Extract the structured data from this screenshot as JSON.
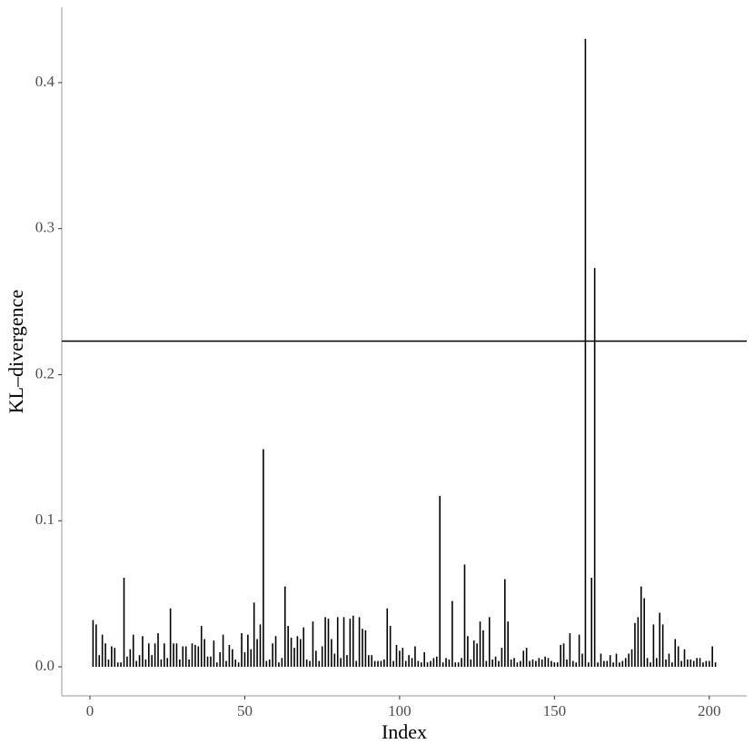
{
  "chart_data": {
    "type": "spike",
    "xlabel": "Index",
    "ylabel": "KL–divergence",
    "x": [
      1,
      2,
      3,
      4,
      5,
      6,
      7,
      8,
      9,
      10,
      11,
      12,
      13,
      14,
      15,
      16,
      17,
      18,
      19,
      20,
      21,
      22,
      23,
      24,
      25,
      26,
      27,
      28,
      29,
      30,
      31,
      32,
      33,
      34,
      35,
      36,
      37,
      38,
      39,
      40,
      41,
      42,
      43,
      44,
      45,
      46,
      47,
      48,
      49,
      50,
      51,
      52,
      53,
      54,
      55,
      56,
      57,
      58,
      59,
      60,
      61,
      62,
      63,
      64,
      65,
      66,
      67,
      68,
      69,
      70,
      71,
      72,
      73,
      74,
      75,
      76,
      77,
      78,
      79,
      80,
      81,
      82,
      83,
      84,
      85,
      86,
      87,
      88,
      89,
      90,
      91,
      92,
      93,
      94,
      95,
      96,
      97,
      98,
      99,
      100,
      101,
      102,
      103,
      104,
      105,
      106,
      107,
      108,
      109,
      110,
      111,
      112,
      113,
      114,
      115,
      116,
      117,
      118,
      119,
      120,
      121,
      122,
      123,
      124,
      125,
      126,
      127,
      128,
      129,
      130,
      131,
      132,
      133,
      134,
      135,
      136,
      137,
      138,
      139,
      140,
      141,
      142,
      143,
      144,
      145,
      146,
      147,
      148,
      149,
      150,
      151,
      152,
      153,
      154,
      155,
      156,
      157,
      158,
      159,
      160,
      161,
      162,
      163,
      164,
      165,
      166,
      167,
      168,
      169,
      170,
      171,
      172,
      173,
      174,
      175,
      176,
      177,
      178,
      179,
      180,
      181,
      182,
      183,
      184,
      185,
      186,
      187,
      188,
      189,
      190,
      191,
      192,
      193,
      194,
      195,
      196,
      197,
      198,
      199,
      200,
      201,
      202
    ],
    "values": [
      0.032,
      0.029,
      0.008,
      0.022,
      0.016,
      0.005,
      0.014,
      0.013,
      0.003,
      0.003,
      0.061,
      0.007,
      0.012,
      0.022,
      0.004,
      0.008,
      0.021,
      0.005,
      0.016,
      0.008,
      0.016,
      0.023,
      0.005,
      0.016,
      0.006,
      0.04,
      0.016,
      0.016,
      0.005,
      0.014,
      0.014,
      0.005,
      0.016,
      0.015,
      0.014,
      0.028,
      0.019,
      0.007,
      0.007,
      0.018,
      0.003,
      0.01,
      0.022,
      0.004,
      0.015,
      0.012,
      0.005,
      0.003,
      0.023,
      0.01,
      0.022,
      0.012,
      0.044,
      0.019,
      0.029,
      0.149,
      0.004,
      0.005,
      0.016,
      0.021,
      0.003,
      0.006,
      0.055,
      0.028,
      0.02,
      0.013,
      0.021,
      0.019,
      0.027,
      0.005,
      0.004,
      0.031,
      0.011,
      0.004,
      0.014,
      0.034,
      0.033,
      0.019,
      0.009,
      0.034,
      0.006,
      0.034,
      0.008,
      0.033,
      0.035,
      0.004,
      0.034,
      0.026,
      0.025,
      0.008,
      0.008,
      0.004,
      0.004,
      0.004,
      0.005,
      0.04,
      0.028,
      0.004,
      0.015,
      0.011,
      0.013,
      0.004,
      0.008,
      0.006,
      0.014,
      0.004,
      0.003,
      0.01,
      0.003,
      0.004,
      0.006,
      0.007,
      0.117,
      0.003,
      0.006,
      0.005,
      0.045,
      0.003,
      0.003,
      0.006,
      0.07,
      0.021,
      0.005,
      0.018,
      0.016,
      0.031,
      0.025,
      0.004,
      0.034,
      0.005,
      0.007,
      0.004,
      0.013,
      0.06,
      0.031,
      0.005,
      0.006,
      0.003,
      0.004,
      0.011,
      0.013,
      0.004,
      0.005,
      0.004,
      0.006,
      0.005,
      0.007,
      0.006,
      0.004,
      0.003,
      0.003,
      0.015,
      0.016,
      0.005,
      0.023,
      0.004,
      0.003,
      0.022,
      0.009,
      0.43,
      0.003,
      0.061,
      0.273,
      0.003,
      0.009,
      0.004,
      0.004,
      0.008,
      0.003,
      0.009,
      0.003,
      0.004,
      0.006,
      0.009,
      0.012,
      0.03,
      0.034,
      0.055,
      0.047,
      0.006,
      0.003,
      0.029,
      0.006,
      0.037,
      0.029,
      0.005,
      0.009,
      0.003,
      0.019,
      0.014,
      0.004,
      0.012,
      0.005,
      0.005,
      0.004,
      0.006,
      0.006,
      0.003,
      0.004,
      0.004,
      0.014,
      0.003
    ],
    "color": "#000000",
    "hline": 0.223,
    "xlim": [
      -9.1,
      212.1
    ],
    "ylim": [
      -0.0199,
      0.4516
    ],
    "xticks": [
      0,
      50,
      100,
      150,
      200
    ],
    "yticks": [
      {
        "value": 0,
        "label": "0.0"
      },
      {
        "value": 0.1,
        "label": "0.1"
      },
      {
        "value": 0.2,
        "label": "0.2"
      },
      {
        "value": 0.3,
        "label": "0.3"
      },
      {
        "value": 0.4,
        "label": "0.4"
      }
    ],
    "grid": false
  }
}
